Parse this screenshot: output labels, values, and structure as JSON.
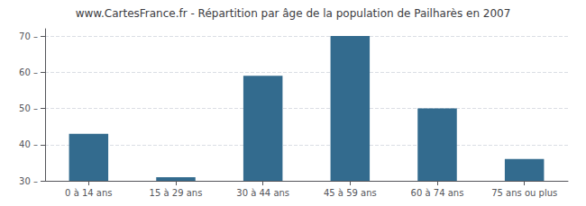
{
  "chart_data": {
    "type": "bar",
    "title": "www.CartesFrance.fr - Répartition par âge de la population de Pailharès en 2007",
    "categories": [
      "0 à 14 ans",
      "15 à 29 ans",
      "30 à 44 ans",
      "45 à 59 ans",
      "60 à 74 ans",
      "75 ans ou plus"
    ],
    "values": [
      43,
      31,
      59,
      70,
      50,
      36
    ],
    "color": "#336b8e",
    "ylim": [
      30,
      72
    ],
    "yticks": [
      {
        "value": 30,
        "label": "30 –"
      },
      {
        "value": 40,
        "label": "40 –"
      },
      {
        "value": 50,
        "label": "50 –"
      },
      {
        "value": 60,
        "label": "60 –"
      },
      {
        "value": 70,
        "label": "70 –"
      }
    ],
    "grid": true
  }
}
